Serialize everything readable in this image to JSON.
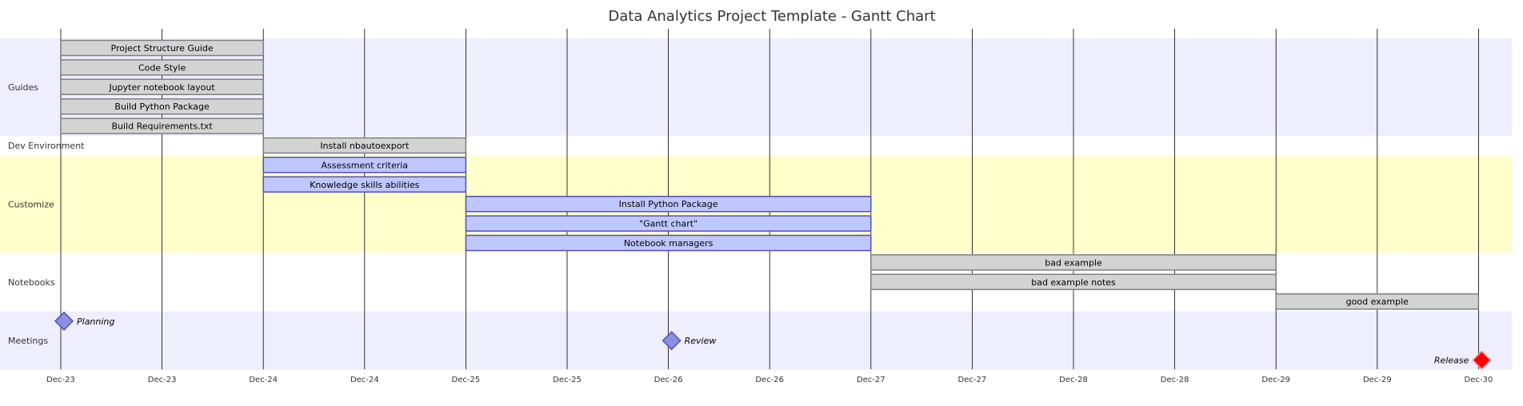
{
  "chart_data": {
    "type": "gantt",
    "title": "Data Analytics Project Template - Gantt Chart",
    "x_axis": {
      "range": [
        0,
        14.2
      ],
      "ticks": [
        {
          "x": 0,
          "label": "Dec-23"
        },
        {
          "x": 1,
          "label": "Dec-23"
        },
        {
          "x": 2,
          "label": "Dec-24"
        },
        {
          "x": 3,
          "label": "Dec-24"
        },
        {
          "x": 4,
          "label": "Dec-25"
        },
        {
          "x": 5,
          "label": "Dec-25"
        },
        {
          "x": 6,
          "label": "Dec-26"
        },
        {
          "x": 7,
          "label": "Dec-26"
        },
        {
          "x": 8,
          "label": "Dec-27"
        },
        {
          "x": 9,
          "label": "Dec-27"
        },
        {
          "x": 10,
          "label": "Dec-28"
        },
        {
          "x": 11,
          "label": "Dec-28"
        },
        {
          "x": 12,
          "label": "Dec-29"
        },
        {
          "x": 13,
          "label": "Dec-29"
        },
        {
          "x": 14,
          "label": "Dec-30"
        }
      ]
    },
    "sections": [
      {
        "name": "Guides",
        "color": "#eeeeff"
      },
      {
        "name": "Dev Environment",
        "color": "#ffffff"
      },
      {
        "name": "Customize",
        "color": "#ffffcc"
      },
      {
        "name": "Notebooks",
        "color": "#ffffff"
      },
      {
        "name": "Meetings",
        "color": "#eeeeff"
      }
    ],
    "tasks": [
      {
        "name": "Project Structure Guide",
        "section": 0,
        "start": 0,
        "end": 2,
        "status": "done"
      },
      {
        "name": "Code Style",
        "section": 0,
        "start": 0,
        "end": 2,
        "status": "done"
      },
      {
        "name": "Jupyter notebook layout",
        "section": 0,
        "start": 0,
        "end": 2,
        "status": "done"
      },
      {
        "name": "Build Python Package",
        "section": 0,
        "start": 0,
        "end": 2,
        "status": "done"
      },
      {
        "name": "Build Requirements.txt",
        "section": 0,
        "start": 0,
        "end": 2,
        "status": "done"
      },
      {
        "name": "Install nbautoexport",
        "section": 1,
        "start": 2,
        "end": 4,
        "status": "done"
      },
      {
        "name": "Assessment criteria",
        "section": 2,
        "start": 2,
        "end": 4,
        "status": "active"
      },
      {
        "name": "Knowledge skills abilities",
        "section": 2,
        "start": 2,
        "end": 4,
        "status": "active"
      },
      {
        "name": "Install Python Package",
        "section": 2,
        "start": 4,
        "end": 8,
        "status": "active"
      },
      {
        "name": "\"Gantt chart\"",
        "section": 2,
        "start": 4,
        "end": 8,
        "status": "active"
      },
      {
        "name": "Notebook managers",
        "section": 2,
        "start": 4,
        "end": 8,
        "status": "active"
      },
      {
        "name": "bad example",
        "section": 3,
        "start": 8,
        "end": 12,
        "status": "done"
      },
      {
        "name": "bad example notes",
        "section": 3,
        "start": 8,
        "end": 12,
        "status": "done"
      },
      {
        "name": "good example",
        "section": 3,
        "start": 12,
        "end": 14,
        "status": "done"
      }
    ],
    "milestones": [
      {
        "name": "Planning",
        "section": 4,
        "x": 0,
        "status": "normal",
        "label_side": "right"
      },
      {
        "name": "Review",
        "section": 4,
        "x": 6,
        "status": "normal",
        "label_side": "right"
      },
      {
        "name": "Release",
        "section": 4,
        "x": 14,
        "status": "critical",
        "label_side": "left"
      }
    ],
    "colors": {
      "done_fill": "#d3d3d3",
      "done_stroke": "#808080",
      "active_fill": "#bfc7ff",
      "active_stroke": "#534fbc",
      "milestone_fill": "#8a90dd",
      "milestone_stroke": "#534fbc",
      "critical_fill": "#ff0000",
      "critical_stroke": "#ff8888",
      "grid": "#000000"
    },
    "grid": true
  }
}
